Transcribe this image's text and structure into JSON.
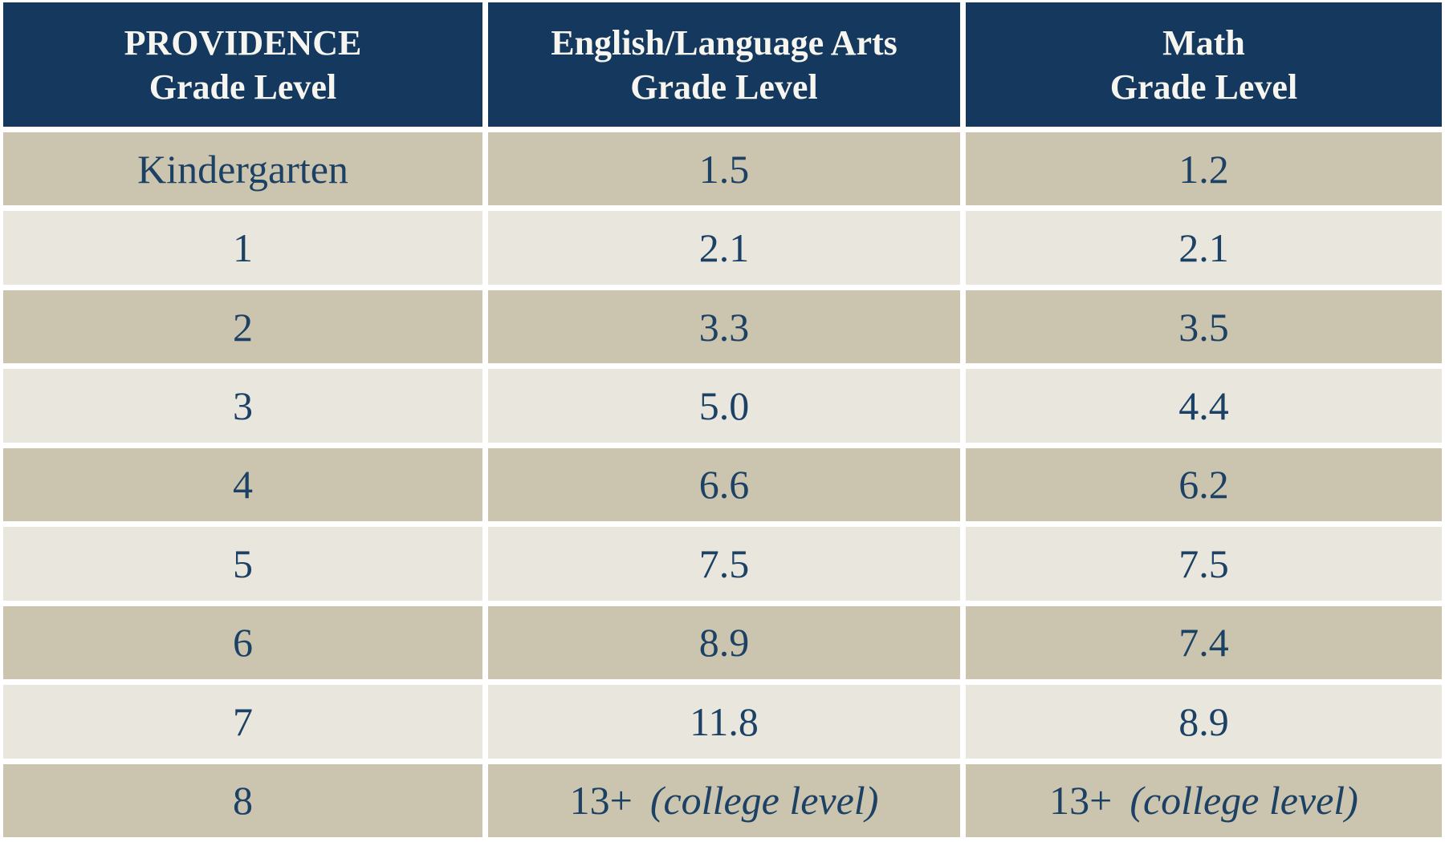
{
  "table": {
    "headers": [
      {
        "line1": "PROVIDENCE",
        "line2": "Grade Level"
      },
      {
        "line1": "English/Language Arts",
        "line2": "Grade Level"
      },
      {
        "line1": "Math",
        "line2": "Grade Level"
      }
    ],
    "rows": [
      {
        "grade": "Kindergarten",
        "ela": "1.5",
        "ela_note": "",
        "math": "1.2",
        "math_note": ""
      },
      {
        "grade": "1",
        "ela": "2.1",
        "ela_note": "",
        "math": "2.1",
        "math_note": ""
      },
      {
        "grade": "2",
        "ela": "3.3",
        "ela_note": "",
        "math": "3.5",
        "math_note": ""
      },
      {
        "grade": "3",
        "ela": "5.0",
        "ela_note": "",
        "math": "4.4",
        "math_note": ""
      },
      {
        "grade": "4",
        "ela": "6.6",
        "ela_note": "",
        "math": "6.2",
        "math_note": ""
      },
      {
        "grade": "5",
        "ela": "7.5",
        "ela_note": "",
        "math": "7.5",
        "math_note": ""
      },
      {
        "grade": "6",
        "ela": "8.9",
        "ela_note": "",
        "math": "7.4",
        "math_note": ""
      },
      {
        "grade": "7",
        "ela": "11.8",
        "ela_note": "",
        "math": "8.9",
        "math_note": ""
      },
      {
        "grade": "8",
        "ela": "13+",
        "ela_note": "(college level)",
        "math": "13+",
        "math_note": "(college level)"
      }
    ]
  },
  "chart_data": {
    "type": "table",
    "title": "",
    "columns": [
      "PROVIDENCE Grade Level",
      "English/Language Arts Grade Level",
      "Math Grade Level"
    ],
    "rows": [
      [
        "Kindergarten",
        "1.5",
        "1.2"
      ],
      [
        "1",
        "2.1",
        "2.1"
      ],
      [
        "2",
        "3.3",
        "3.5"
      ],
      [
        "3",
        "5.0",
        "4.4"
      ],
      [
        "4",
        "6.6",
        "6.2"
      ],
      [
        "5",
        "7.5",
        "7.5"
      ],
      [
        "6",
        "8.9",
        "7.4"
      ],
      [
        "7",
        "11.8",
        "8.9"
      ],
      [
        "8",
        "13+ (college level)",
        "13+ (college level)"
      ]
    ],
    "layout": {
      "header_position": "top",
      "row_striping": [
        "tan",
        "light"
      ],
      "first_data_row_style": "tan",
      "cell_alignment": "center"
    }
  },
  "colors": {
    "header_bg": "#15395E",
    "header_text": "#F7F5EF",
    "cell_text": "#1C4164",
    "row_tan": "#CBC5B0",
    "row_light": "#E8E6DD",
    "gap": "#FFFFFF"
  }
}
